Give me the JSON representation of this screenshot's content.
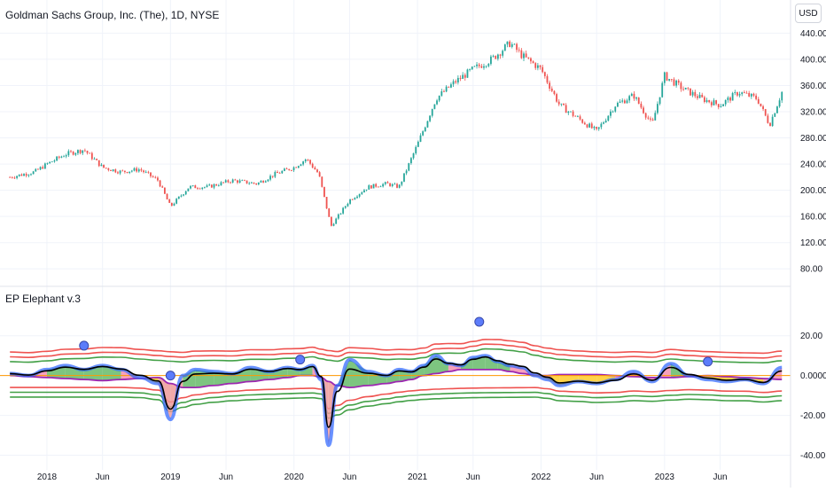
{
  "chart_data": [
    {
      "type": "candlestick",
      "title": "Goldman Sachs Group, Inc. (The), 1D, NYSE",
      "currency": "USD",
      "ylim": [
        60,
        450
      ],
      "y_ticks": [
        80,
        120,
        160,
        200,
        240,
        280,
        320,
        360,
        400,
        440
      ],
      "y_tick_labels": [
        "80.00",
        "120.00",
        "160.00",
        "200.00",
        "240.00",
        "280.00",
        "320.00",
        "360.00",
        "400.00",
        "440.00"
      ],
      "up_color": "#26a69a",
      "down_color": "#ef5350",
      "x": [
        2017.7,
        2017.9,
        2018.0,
        2018.15,
        2018.3,
        2018.45,
        2018.6,
        2018.75,
        2018.9,
        2019.0,
        2019.15,
        2019.3,
        2019.5,
        2019.7,
        2019.85,
        2020.0,
        2020.1,
        2020.2,
        2020.3,
        2020.45,
        2020.6,
        2020.75,
        2020.85,
        2021.0,
        2021.15,
        2021.3,
        2021.45,
        2021.6,
        2021.75,
        2021.85,
        2022.0,
        2022.15,
        2022.3,
        2022.45,
        2022.6,
        2022.75,
        2022.9,
        2023.0,
        2023.15,
        2023.3,
        2023.45,
        2023.6,
        2023.75,
        2023.85,
        2023.95
      ],
      "close": [
        220,
        228,
        240,
        255,
        262,
        235,
        228,
        232,
        215,
        175,
        205,
        205,
        215,
        210,
        225,
        235,
        248,
        225,
        145,
        185,
        205,
        210,
        205,
        270,
        340,
        365,
        385,
        400,
        425,
        405,
        385,
        330,
        310,
        290,
        330,
        345,
        300,
        375,
        355,
        340,
        330,
        350,
        340,
        300,
        350
      ]
    },
    {
      "type": "line",
      "title": "EP Elephant v.3",
      "ylim": [
        -42,
        35
      ],
      "y_ticks": [
        -40,
        -20,
        0,
        20
      ],
      "y_tick_labels": [
        "-40.00",
        "-20.00",
        "0.0000",
        "20.00"
      ],
      "x": [
        2017.7,
        2017.85,
        2018.0,
        2018.15,
        2018.3,
        2018.45,
        2018.6,
        2018.75,
        2018.9,
        2019.0,
        2019.1,
        2019.2,
        2019.35,
        2019.5,
        2019.65,
        2019.8,
        2019.95,
        2020.05,
        2020.15,
        2020.22,
        2020.28,
        2020.35,
        2020.45,
        2020.6,
        2020.75,
        2020.85,
        2020.95,
        2021.05,
        2021.15,
        2021.25,
        2021.35,
        2021.45,
        2021.55,
        2021.65,
        2021.75,
        2021.85,
        2021.95,
        2022.05,
        2022.15,
        2022.3,
        2022.45,
        2022.6,
        2022.75,
        2022.9,
        2023.05,
        2023.2,
        2023.35,
        2023.5,
        2023.65,
        2023.8,
        2023.95
      ],
      "series": [
        {
          "values": [
            1,
            0,
            3,
            5,
            3,
            5,
            3,
            -1,
            -4,
            -22,
            0,
            3,
            2,
            1,
            4,
            2,
            4,
            3,
            5,
            -2,
            -35,
            -5,
            8,
            2,
            0,
            3,
            2,
            5,
            10,
            6,
            5,
            9,
            10,
            7,
            5,
            4,
            0,
            -2,
            -5,
            -3,
            -4,
            -2,
            2,
            -3,
            6,
            0,
            -2,
            -3,
            -2,
            -4,
            4
          ],
          "color": "#000000"
        },
        {
          "values": [
            0,
            -0.5,
            -1,
            -1.5,
            -2,
            -2.5,
            -2,
            -1.5,
            -1,
            -4,
            -6,
            -6,
            -5,
            -4,
            -3,
            -2,
            -1,
            0,
            0,
            -1,
            -3,
            -5,
            -6,
            -5,
            -4,
            -3,
            -2,
            0,
            1,
            2,
            3,
            3,
            3,
            3,
            2,
            1,
            0,
            0,
            0.5,
            0.5,
            0.5,
            0,
            -0.5,
            -1,
            -1,
            -0.5,
            0,
            -0.5,
            -1,
            -1.5,
            -2
          ],
          "color": "#9c27b0"
        }
      ],
      "signal_markers": [
        {
          "x": 2018.3,
          "y": 15
        },
        {
          "x": 2019.0,
          "y": 0
        },
        {
          "x": 2020.05,
          "y": 8
        },
        {
          "x": 2021.5,
          "y": 27
        },
        {
          "x": 2023.35,
          "y": 7
        }
      ],
      "upper_band_color": "#43a047",
      "lower_band_color": "#ef5350"
    }
  ],
  "x_axis": {
    "ticks": [
      {
        "x": 2018.0,
        "label": "2018"
      },
      {
        "x": 2018.45,
        "label": "Jun"
      },
      {
        "x": 2019.0,
        "label": "2019"
      },
      {
        "x": 2019.45,
        "label": "Jun"
      },
      {
        "x": 2020.0,
        "label": "2020"
      },
      {
        "x": 2020.45,
        "label": "Jun"
      },
      {
        "x": 2021.0,
        "label": "2021"
      },
      {
        "x": 2021.45,
        "label": "Jun"
      },
      {
        "x": 2022.0,
        "label": "2022"
      },
      {
        "x": 2022.45,
        "label": "Jun"
      },
      {
        "x": 2023.0,
        "label": "2023"
      },
      {
        "x": 2023.45,
        "label": "Jun"
      }
    ]
  }
}
